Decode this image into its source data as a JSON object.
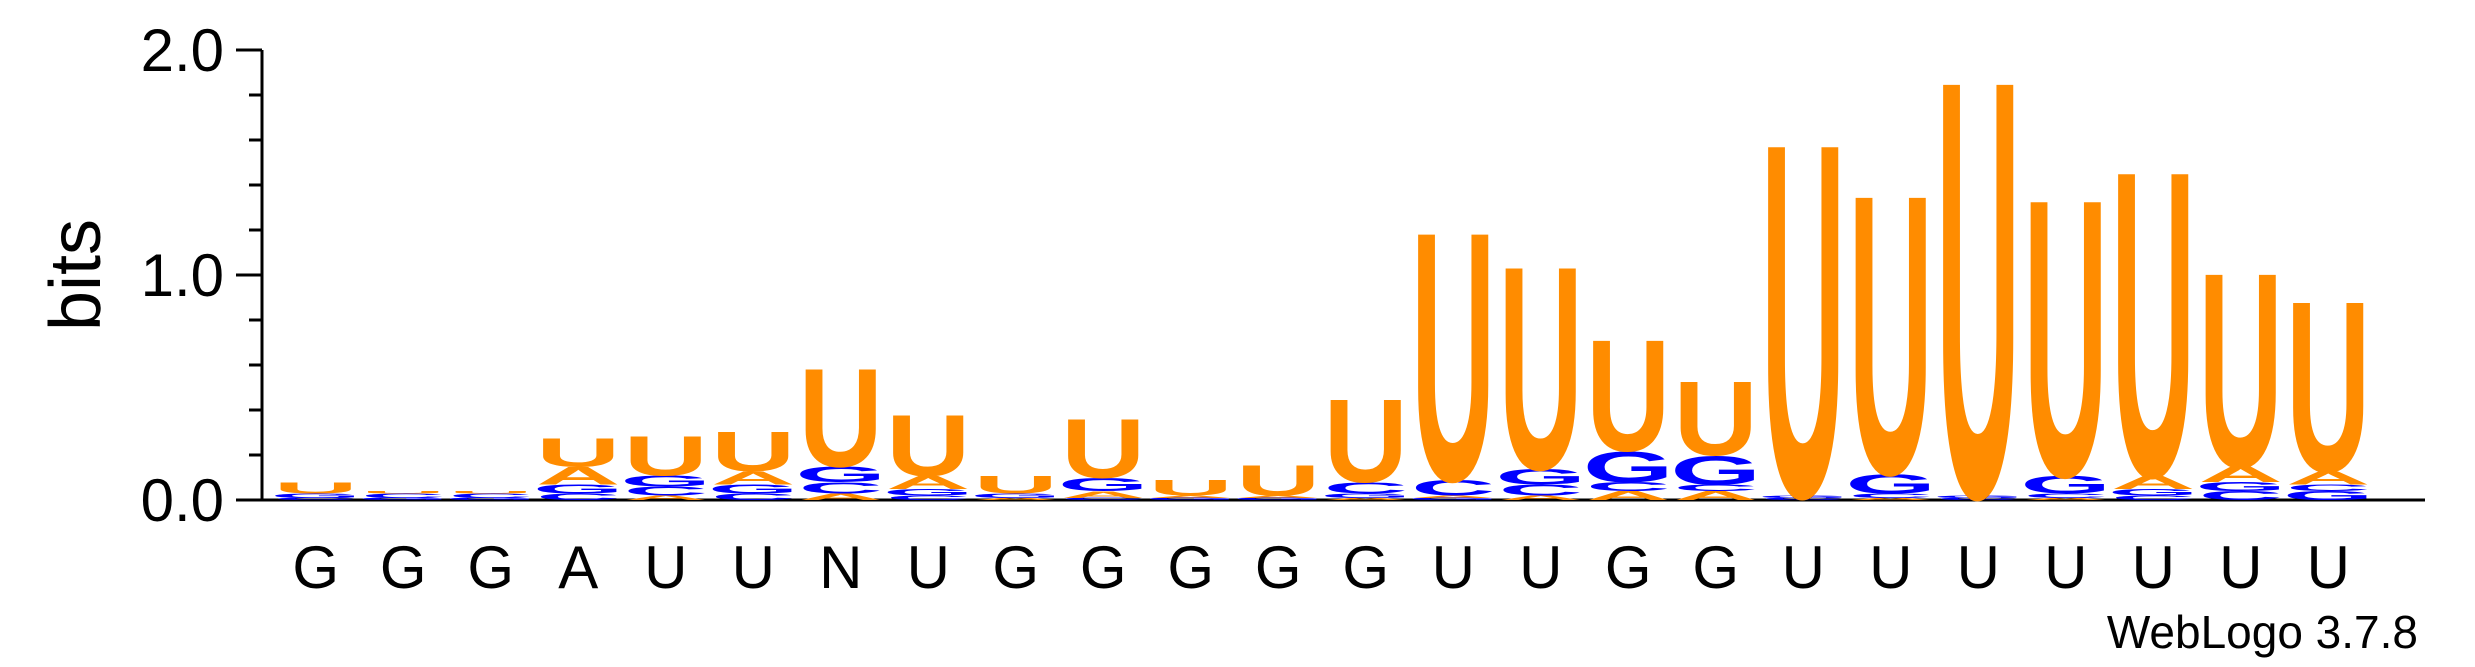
{
  "chart_data": {
    "type": "sequence-logo",
    "ylabel": "bits",
    "ylim": [
      0,
      2.0
    ],
    "yticks": [
      "0.0",
      "1.0",
      "2.0"
    ],
    "credit": "WebLogo 3.7.8",
    "colors": {
      "U": "#FF8C00",
      "A": "#FF8C00",
      "G": "#0000FF",
      "C": "#0000FF"
    },
    "positions": [
      {
        "label": "G",
        "stack": [
          [
            "C",
            0.01
          ],
          [
            "G",
            0.02
          ],
          [
            "U",
            0.05
          ]
        ]
      },
      {
        "label": "G",
        "stack": [
          [
            "G",
            0.01
          ],
          [
            "C",
            0.02
          ],
          [
            "U",
            0.01
          ]
        ]
      },
      {
        "label": "G",
        "stack": [
          [
            "G",
            0.01
          ],
          [
            "C",
            0.02
          ],
          [
            "U",
            0.01
          ]
        ]
      },
      {
        "label": "A",
        "stack": [
          [
            "C",
            0.03
          ],
          [
            "G",
            0.04
          ],
          [
            "A",
            0.08
          ],
          [
            "U",
            0.13
          ]
        ]
      },
      {
        "label": "U",
        "stack": [
          [
            "A",
            0.02
          ],
          [
            "C",
            0.04
          ],
          [
            "G",
            0.05
          ],
          [
            "U",
            0.18
          ]
        ]
      },
      {
        "label": "U",
        "stack": [
          [
            "C",
            0.03
          ],
          [
            "G",
            0.04
          ],
          [
            "A",
            0.06
          ],
          [
            "U",
            0.18
          ]
        ]
      },
      {
        "label": "N",
        "stack": [
          [
            "A",
            0.03
          ],
          [
            "C",
            0.05
          ],
          [
            "G",
            0.07
          ],
          [
            "U",
            0.45
          ]
        ]
      },
      {
        "label": "U",
        "stack": [
          [
            "C",
            0.02
          ],
          [
            "G",
            0.03
          ],
          [
            "A",
            0.06
          ],
          [
            "U",
            0.28
          ]
        ]
      },
      {
        "label": "G",
        "stack": [
          [
            "A",
            0.01
          ],
          [
            "G",
            0.02
          ],
          [
            "U",
            0.08
          ]
        ]
      },
      {
        "label": "G",
        "stack": [
          [
            "C",
            0.01
          ],
          [
            "A",
            0.03
          ],
          [
            "G",
            0.06
          ],
          [
            "U",
            0.27
          ]
        ]
      },
      {
        "label": "G",
        "stack": [
          [
            "G",
            0.01
          ],
          [
            "A",
            0.01
          ],
          [
            "U",
            0.07
          ]
        ]
      },
      {
        "label": "G",
        "stack": [
          [
            "G",
            0.01
          ],
          [
            "A",
            0.01
          ],
          [
            "U",
            0.14
          ]
        ]
      },
      {
        "label": "G",
        "stack": [
          [
            "A",
            0.01
          ],
          [
            "G",
            0.02
          ],
          [
            "C",
            0.05
          ],
          [
            "U",
            0.38
          ]
        ]
      },
      {
        "label": "U",
        "stack": [
          [
            "G",
            0.01
          ],
          [
            "A",
            0.01
          ],
          [
            "C",
            0.07
          ],
          [
            "U",
            1.14
          ]
        ]
      },
      {
        "label": "U",
        "stack": [
          [
            "A",
            0.02
          ],
          [
            "C",
            0.05
          ],
          [
            "G",
            0.07
          ],
          [
            "U",
            0.93
          ]
        ]
      },
      {
        "label": "G",
        "stack": [
          [
            "A",
            0.04
          ],
          [
            "C",
            0.04
          ],
          [
            "G",
            0.14
          ],
          [
            "U",
            0.51
          ]
        ]
      },
      {
        "label": "G",
        "stack": [
          [
            "A",
            0.04
          ],
          [
            "C",
            0.03
          ],
          [
            "G",
            0.13
          ],
          [
            "U",
            0.34
          ]
        ]
      },
      {
        "label": "U",
        "stack": [
          [
            "C",
            0.01
          ],
          [
            "G",
            0.01
          ],
          [
            "U",
            1.62
          ]
        ]
      },
      {
        "label": "U",
        "stack": [
          [
            "A",
            0.01
          ],
          [
            "C",
            0.02
          ],
          [
            "G",
            0.09
          ],
          [
            "U",
            1.28
          ]
        ]
      },
      {
        "label": "U",
        "stack": [
          [
            "C",
            0.01
          ],
          [
            "G",
            0.01
          ],
          [
            "U",
            1.91
          ]
        ]
      },
      {
        "label": "U",
        "stack": [
          [
            "A",
            0.01
          ],
          [
            "C",
            0.02
          ],
          [
            "G",
            0.08
          ],
          [
            "U",
            1.27
          ]
        ]
      },
      {
        "label": "U",
        "stack": [
          [
            "C",
            0.02
          ],
          [
            "G",
            0.03
          ],
          [
            "A",
            0.06
          ],
          [
            "U",
            1.4
          ]
        ]
      },
      {
        "label": "U",
        "stack": [
          [
            "C",
            0.04
          ],
          [
            "G",
            0.04
          ],
          [
            "A",
            0.07
          ],
          [
            "U",
            0.89
          ]
        ]
      },
      {
        "label": "U",
        "stack": [
          [
            "G",
            0.04
          ],
          [
            "C",
            0.03
          ],
          [
            "A",
            0.06
          ],
          [
            "U",
            0.78
          ]
        ]
      }
    ]
  }
}
